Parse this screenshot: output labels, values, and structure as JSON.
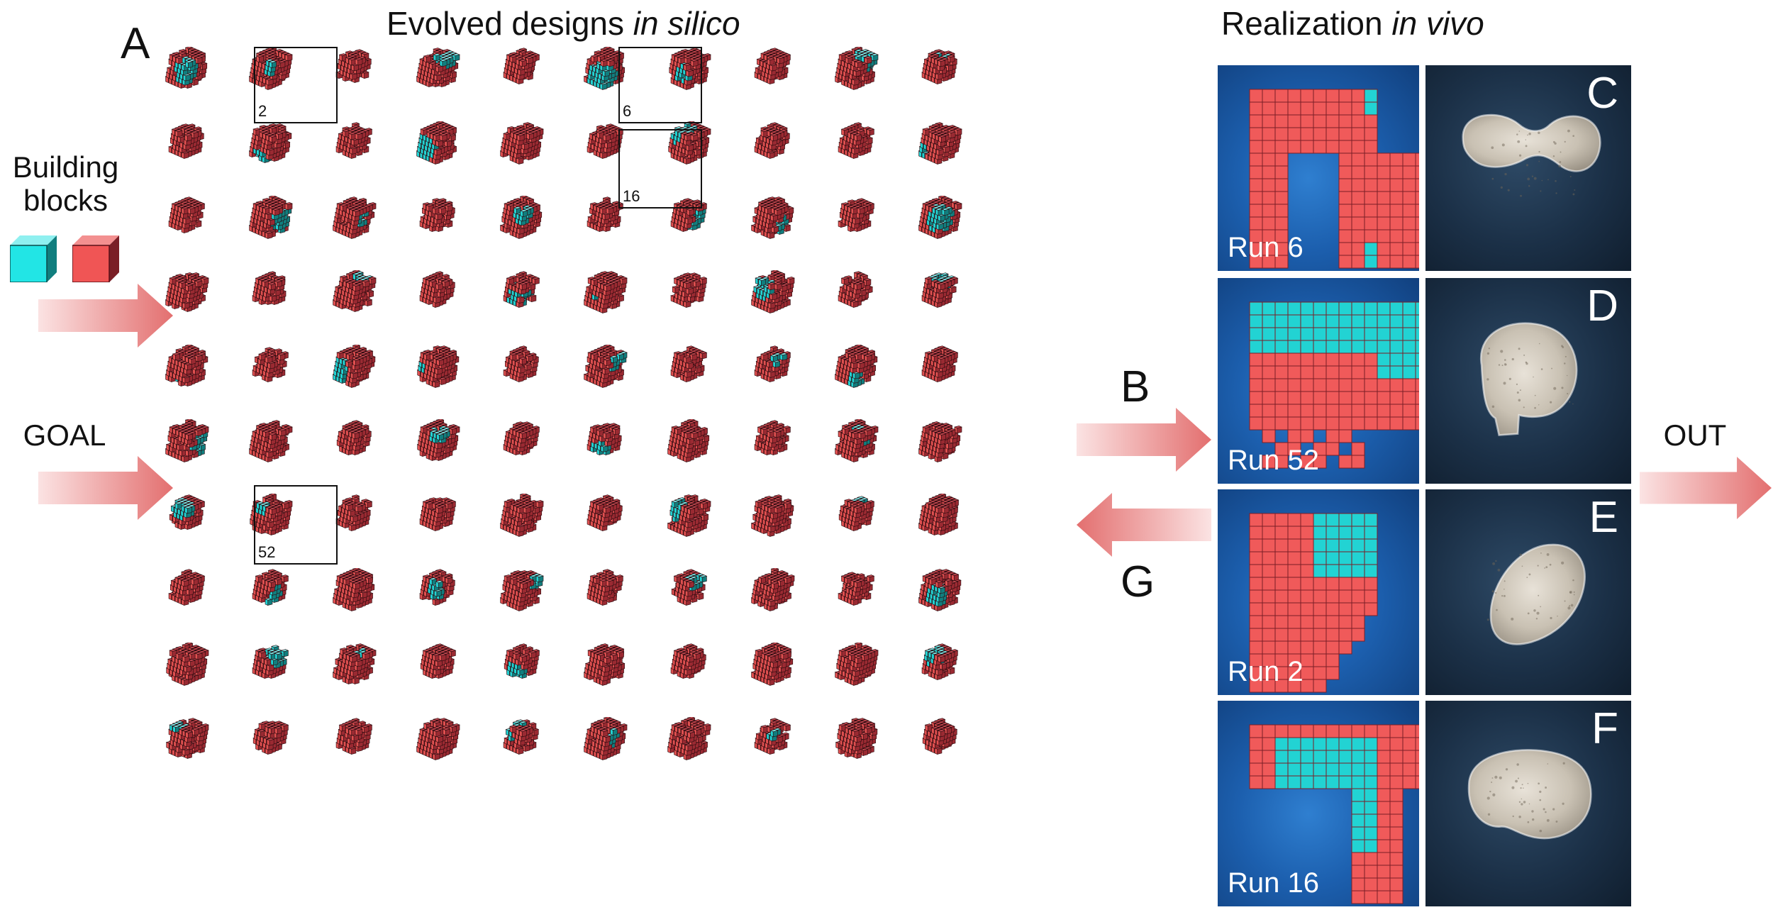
{
  "headings": {
    "left_prefix": "Evolved designs ",
    "left_italic": "in silico",
    "right_prefix": "Realization ",
    "right_italic": "in vivo"
  },
  "labels": {
    "panel_a": "A",
    "building_blocks_line1": "Building",
    "building_blocks_line2": "blocks",
    "goal": "GOAL",
    "arrow_b": "B",
    "arrow_g": "G",
    "out": "OUT"
  },
  "highlighted_designs": [
    {
      "number": "2"
    },
    {
      "number": "6"
    },
    {
      "number": "16"
    },
    {
      "number": "52"
    }
  ],
  "realization_rows": [
    {
      "run": "Run 6",
      "letter": "C"
    },
    {
      "run": "Run 52",
      "letter": "D"
    },
    {
      "run": "Run 2",
      "letter": "E"
    },
    {
      "run": "Run 16",
      "letter": "F"
    }
  ],
  "colors": {
    "cell_red": "#e05050",
    "cell_red_dark": "#9a2a32",
    "cell_cyan": "#22d3d3",
    "cell_cyan_dark": "#117e7e",
    "arrow_fill": "#e98c8c",
    "sim_background": "#1c5fae"
  }
}
